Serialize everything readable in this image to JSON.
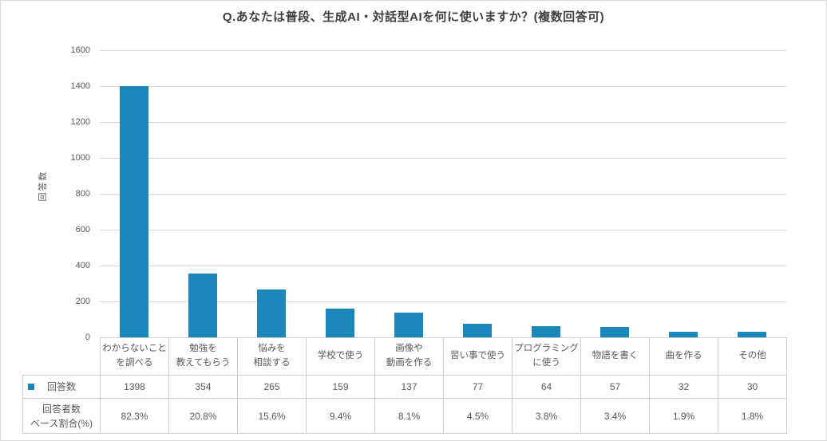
{
  "title": "Q.あなたは普段、生成AI・対話型AIを何に使いますか？(複数回答可)",
  "colors": {
    "bar": "#1b87ba",
    "grid": "#d9d9d9",
    "axis_text": "#595959",
    "table_border": "#cfcfcf",
    "title_text": "#3f3f3f"
  },
  "chart_data": {
    "type": "bar",
    "title": "Q.あなたは普段、生成AI・対話型AIを何に使いますか？(複数回答可)",
    "xlabel": "",
    "ylabel": "回答数",
    "ylim": [
      0,
      1600
    ],
    "ytick_step": 200,
    "grid": true,
    "legend_position": "table-left",
    "categories": [
      "わからないこと\nを調べる",
      "勉強を\n教えてもらう",
      "悩みを\n相談する",
      "学校で使う",
      "画像や\n動画を作る",
      "習い事で使う",
      "プログラミング\nに使う",
      "物語を書く",
      "曲を作る",
      "その他"
    ],
    "series": [
      {
        "name": "回答数",
        "values": [
          1398,
          354,
          265,
          159,
          137,
          77,
          64,
          57,
          32,
          30
        ]
      },
      {
        "name": "回答者数ベース割合(%)",
        "values_text": [
          "82.3%",
          "20.8%",
          "15.6%",
          "9.4%",
          "8.1%",
          "4.5%",
          "3.8%",
          "3.4%",
          "1.9%",
          "1.8%"
        ]
      }
    ]
  },
  "table": {
    "counts_row_header": "回答数",
    "pct_row_header_line1": "回答者数",
    "pct_row_header_line2": "ベース割合(%)"
  }
}
